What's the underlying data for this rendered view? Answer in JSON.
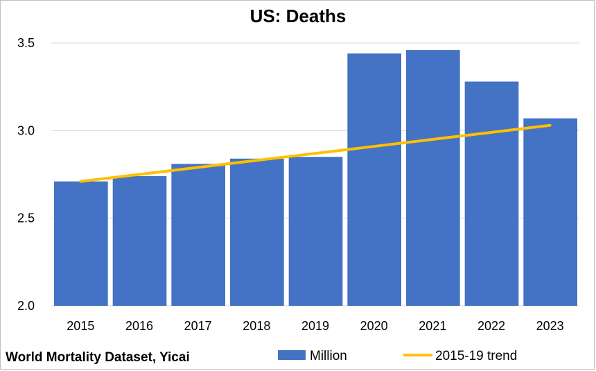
{
  "chart_data": {
    "type": "bar",
    "title": "US: Deaths",
    "source": "World Mortality Dataset, Yicai",
    "categories": [
      "2015",
      "2016",
      "2017",
      "2018",
      "2019",
      "2020",
      "2021",
      "2022",
      "2023"
    ],
    "series": [
      {
        "name": "Million",
        "type": "bar",
        "color": "#4472c4",
        "values": [
          2.71,
          2.74,
          2.81,
          2.84,
          2.85,
          3.44,
          3.46,
          3.28,
          3.07
        ]
      },
      {
        "name": "2015-19 trend",
        "type": "line",
        "color": "#ffc000",
        "values": [
          2.71,
          2.75,
          2.79,
          2.83,
          2.87,
          2.91,
          2.95,
          2.99,
          3.03
        ]
      }
    ],
    "ylim": [
      2.0,
      3.5
    ],
    "yticks": [
      "2.0",
      "2.5",
      "3.0",
      "3.5"
    ],
    "grid": true,
    "legend": "bottom"
  }
}
